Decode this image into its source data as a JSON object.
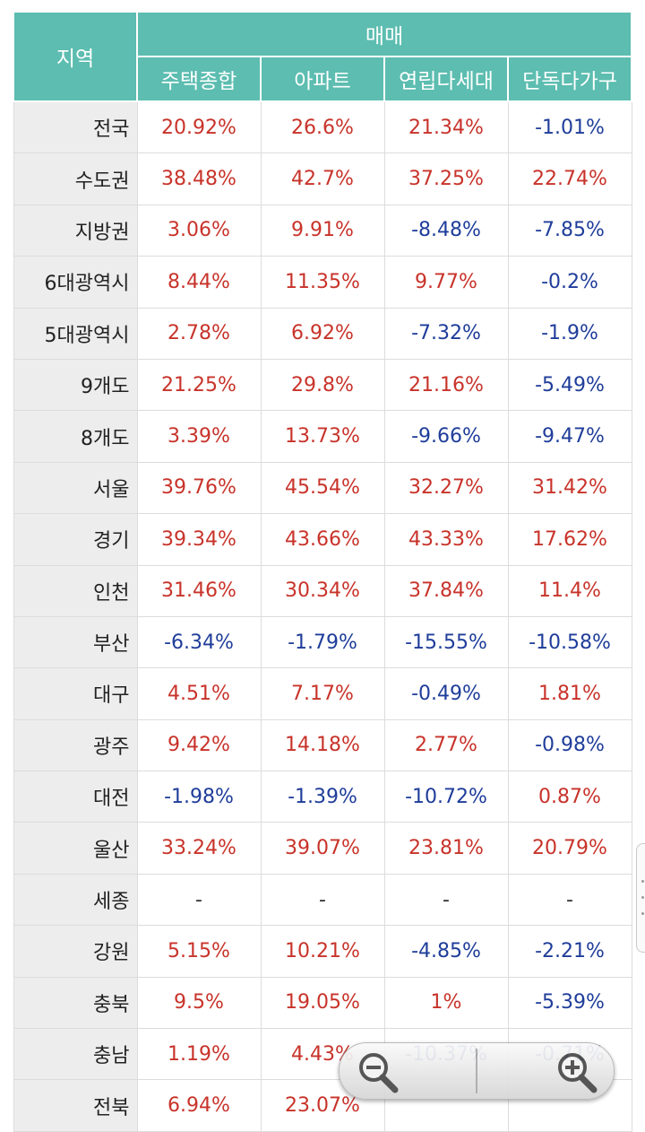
{
  "header": {
    "region": "지역",
    "group": "매매",
    "columns": [
      "주택종합",
      "아파트",
      "연립다세대",
      "단독다가구"
    ]
  },
  "rows": [
    {
      "region": "전국",
      "values": [
        "20.92%",
        "26.6%",
        "21.34%",
        "-1.01%"
      ]
    },
    {
      "region": "수도권",
      "values": [
        "38.48%",
        "42.7%",
        "37.25%",
        "22.74%"
      ]
    },
    {
      "region": "지방권",
      "values": [
        "3.06%",
        "9.91%",
        "-8.48%",
        "-7.85%"
      ]
    },
    {
      "region": "6대광역시",
      "values": [
        "8.44%",
        "11.35%",
        "9.77%",
        "-0.2%"
      ]
    },
    {
      "region": "5대광역시",
      "values": [
        "2.78%",
        "6.92%",
        "-7.32%",
        "-1.9%"
      ]
    },
    {
      "region": "9개도",
      "values": [
        "21.25%",
        "29.8%",
        "21.16%",
        "-5.49%"
      ]
    },
    {
      "region": "8개도",
      "values": [
        "3.39%",
        "13.73%",
        "-9.66%",
        "-9.47%"
      ]
    },
    {
      "region": "서울",
      "values": [
        "39.76%",
        "45.54%",
        "32.27%",
        "31.42%"
      ]
    },
    {
      "region": "경기",
      "values": [
        "39.34%",
        "43.66%",
        "43.33%",
        "17.62%"
      ]
    },
    {
      "region": "인천",
      "values": [
        "31.46%",
        "30.34%",
        "37.84%",
        "11.4%"
      ]
    },
    {
      "region": "부산",
      "values": [
        "-6.34%",
        "-1.79%",
        "-15.55%",
        "-10.58%"
      ]
    },
    {
      "region": "대구",
      "values": [
        "4.51%",
        "7.17%",
        "-0.49%",
        "1.81%"
      ]
    },
    {
      "region": "광주",
      "values": [
        "9.42%",
        "14.18%",
        "2.77%",
        "-0.98%"
      ]
    },
    {
      "region": "대전",
      "values": [
        "-1.98%",
        "-1.39%",
        "-10.72%",
        "0.87%"
      ]
    },
    {
      "region": "울산",
      "values": [
        "33.24%",
        "39.07%",
        "23.81%",
        "20.79%"
      ]
    },
    {
      "region": "세종",
      "values": [
        "-",
        "-",
        "-",
        "-"
      ]
    },
    {
      "region": "강원",
      "values": [
        "5.15%",
        "10.21%",
        "-4.85%",
        "-2.21%"
      ]
    },
    {
      "region": "충북",
      "values": [
        "9.5%",
        "19.05%",
        "1%",
        "-5.39%"
      ]
    },
    {
      "region": "충남",
      "values": [
        "1.19%",
        "4.43%",
        "-10.37%",
        "-0.71%"
      ]
    },
    {
      "region": "전북",
      "values": [
        "6.94%",
        "23.07%",
        "",
        ""
      ]
    }
  ],
  "colors": {
    "header_bg": "#5cbdb0",
    "positive": "#c8332a",
    "negative": "#1f3d9a",
    "region_bg": "#ededed"
  },
  "zoom_controls": {
    "zoom_out_icon": "zoom-out-icon",
    "zoom_in_icon": "zoom-in-icon"
  }
}
